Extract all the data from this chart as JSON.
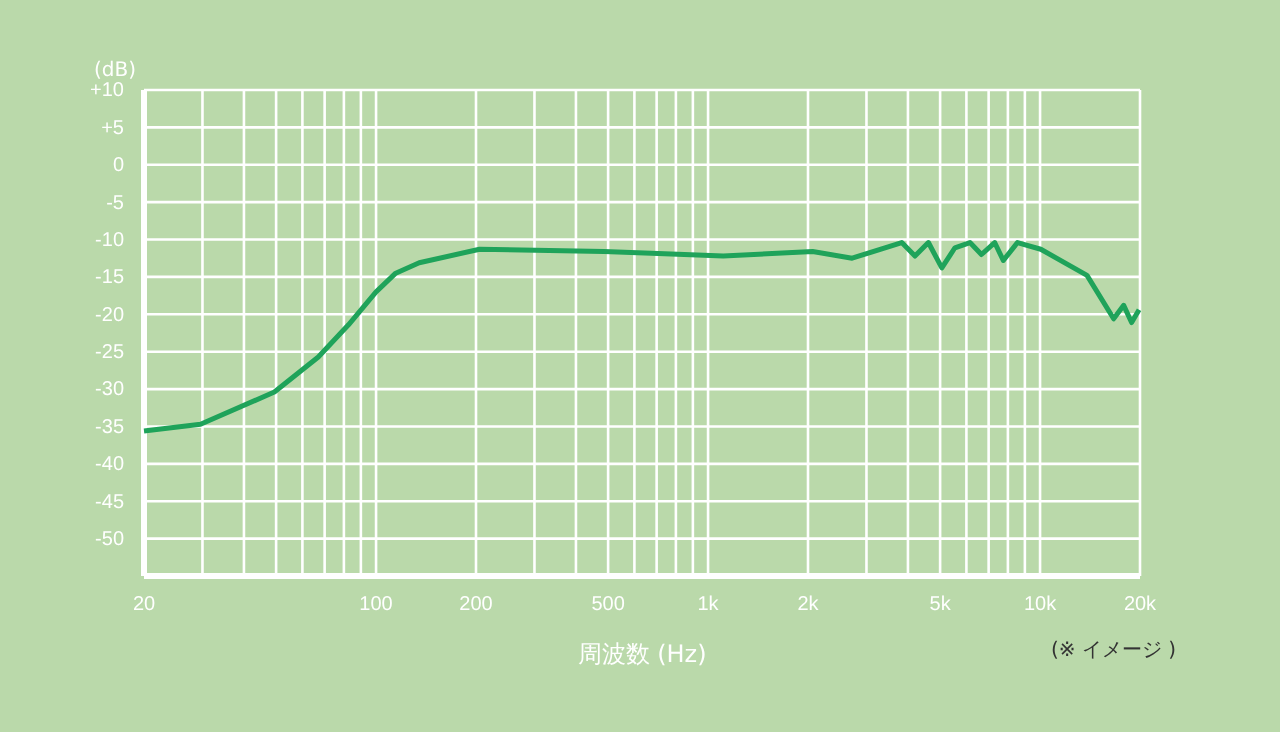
{
  "chart_data": {
    "type": "line",
    "xlabel": "周波数 (Hz)",
    "ylabel": "(dB)",
    "annotations": [
      "(※ イメージ )"
    ],
    "log": "x",
    "grid": true,
    "marker": "none",
    "line_style": "solid",
    "xlim": [
      20,
      20000
    ],
    "ylim": [
      -55,
      10
    ],
    "xticks": [
      20,
      {
        "value": 30,
        "label": null
      },
      {
        "value": 40,
        "label": null
      },
      {
        "value": 50,
        "label": null
      },
      {
        "value": 60,
        "label": null
      },
      {
        "value": 70,
        "label": null
      },
      {
        "value": 80,
        "label": null
      },
      {
        "value": 90,
        "label": null
      },
      100,
      200,
      {
        "value": 300,
        "label": null
      },
      {
        "value": 400,
        "label": null
      },
      500,
      {
        "value": 600,
        "label": null
      },
      {
        "value": 700,
        "label": null
      },
      {
        "value": 800,
        "label": null
      },
      {
        "value": 900,
        "label": null
      },
      {
        "value": 1000,
        "label": "1k"
      },
      {
        "value": 2000,
        "label": "2k"
      },
      {
        "value": 3000,
        "label": null
      },
      {
        "value": 4000,
        "label": null
      },
      {
        "value": 5000,
        "label": "5k"
      },
      {
        "value": 6000,
        "label": null
      },
      {
        "value": 7000,
        "label": null
      },
      {
        "value": 8000,
        "label": null
      },
      {
        "value": 9000,
        "label": null
      },
      {
        "value": 10000,
        "label": "10k"
      },
      {
        "value": 20000,
        "label": "20k"
      }
    ],
    "yticks": [
      {
        "value": 10,
        "label": "+10"
      },
      {
        "value": 5,
        "label": "+5"
      },
      0,
      -5,
      -10,
      -15,
      -20,
      -25,
      -30,
      -35,
      -40,
      -45,
      -50
    ],
    "series": [
      {
        "color": "#1fa35a",
        "x": [
          20,
          29.6,
          49.4,
          67,
          82.6,
          100,
          114.6,
          134.9,
          205,
          486,
          740,
          1111,
          2065,
          2716,
          3832,
          4200,
          4610,
          5060,
          5540,
          6150,
          6660,
          7300,
          7750,
          8550,
          10050,
          13850,
          16660,
          17860,
          18870,
          19870
        ],
        "values": [
          -35.6,
          -34.7,
          -30.4,
          -25.7,
          -21.4,
          -17,
          -14.5,
          -13.1,
          -11.3,
          -11.6,
          -11.9,
          -12.2,
          -11.6,
          -12.5,
          -10.4,
          -12.2,
          -10.4,
          -13.8,
          -11.1,
          -10.4,
          -12,
          -10.4,
          -12.8,
          -10.4,
          -11.3,
          -14.8,
          -20.6,
          -18.8,
          -21.1,
          -19.4
        ]
      }
    ]
  }
}
